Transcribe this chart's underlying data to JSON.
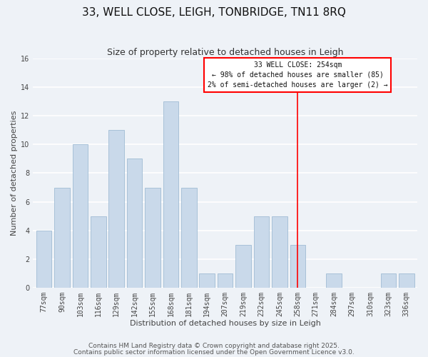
{
  "title": "33, WELL CLOSE, LEIGH, TONBRIDGE, TN11 8RQ",
  "subtitle": "Size of property relative to detached houses in Leigh",
  "xlabel": "Distribution of detached houses by size in Leigh",
  "ylabel": "Number of detached properties",
  "bin_labels": [
    "77sqm",
    "90sqm",
    "103sqm",
    "116sqm",
    "129sqm",
    "142sqm",
    "155sqm",
    "168sqm",
    "181sqm",
    "194sqm",
    "207sqm",
    "219sqm",
    "232sqm",
    "245sqm",
    "258sqm",
    "271sqm",
    "284sqm",
    "297sqm",
    "310sqm",
    "323sqm",
    "336sqm"
  ],
  "bar_heights": [
    4,
    7,
    10,
    5,
    11,
    9,
    7,
    13,
    7,
    1,
    1,
    3,
    5,
    5,
    3,
    0,
    1,
    0,
    0,
    1,
    1
  ],
  "bar_color": "#c9d9ea",
  "bar_edge_color": "#a0bcd4",
  "ylim": [
    0,
    16
  ],
  "yticks": [
    0,
    2,
    4,
    6,
    8,
    10,
    12,
    14,
    16
  ],
  "red_line_index": 14,
  "annotation_title": "33 WELL CLOSE: 254sqm",
  "annotation_line1": "← 98% of detached houses are smaller (85)",
  "annotation_line2": "2% of semi-detached houses are larger (2) →",
  "footer1": "Contains HM Land Registry data © Crown copyright and database right 2025.",
  "footer2": "Contains public sector information licensed under the Open Government Licence v3.0.",
  "bg_color": "#eef2f7",
  "plot_bg_color": "#eef2f7",
  "grid_color": "#ffffff",
  "title_fontsize": 11,
  "subtitle_fontsize": 9,
  "axis_label_fontsize": 8,
  "tick_fontsize": 7,
  "annotation_fontsize": 7,
  "footer_fontsize": 6.5
}
